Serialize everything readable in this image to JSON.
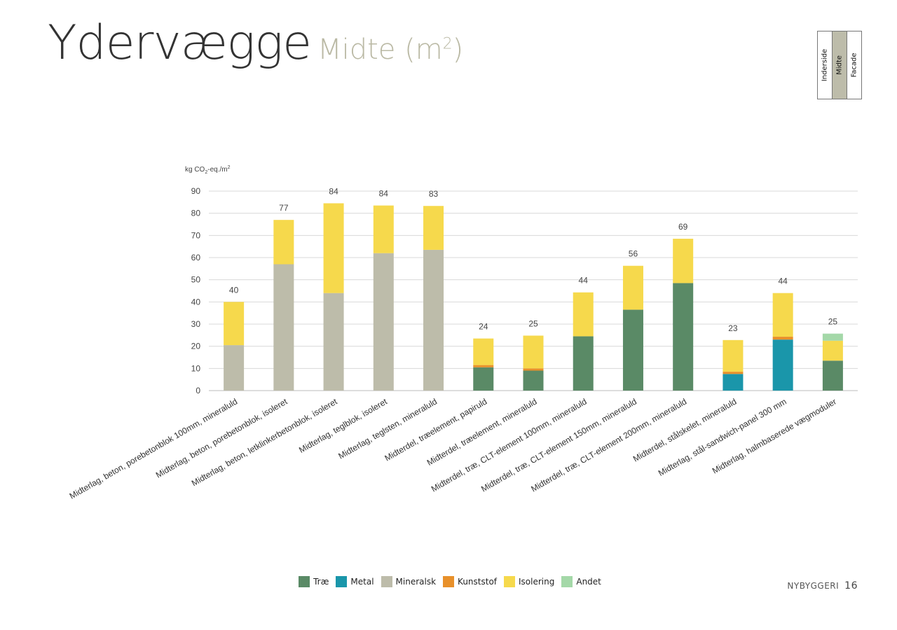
{
  "page": {
    "title": "Ydervægge",
    "subtitle": "Midte (m",
    "subtitle_sup": "2",
    "subtitle_end": ")",
    "layers": [
      "Inderside",
      "Midte",
      "Facade"
    ],
    "footer_section": "NYBYGGERI",
    "footer_page": "16"
  },
  "colors": {
    "Træ": "#5a8a66",
    "Metal": "#1a96aa",
    "Mineralsk": "#bdbcaa",
    "Kunststof": "#e8902a",
    "Isolering": "#f6d94c",
    "Andet": "#a4d8a8"
  },
  "chart_data": {
    "type": "bar",
    "stacked": true,
    "ylabel_main": "kg CO",
    "ylabel_sub": "2",
    "ylabel_end": "-eq./m",
    "ylabel_sup": "2",
    "ylim": [
      0,
      90
    ],
    "yticks": [
      "0",
      "10",
      "20",
      "30",
      "40",
      "50",
      "60",
      "70",
      "80",
      "90"
    ],
    "grid": true,
    "legend_position": "bottom",
    "categories": [
      "Midterlag, beton, porebetonblok 100mm, mineraluld",
      "Midterlag, beton, porebetonblok, isoleret",
      "Midterlag, beton, letklinkerbetonblok, isoleret",
      "Midterlag, teglblok, isoleret",
      "Midterlag, teglsten, mineraluld",
      "Midterdel, træelement, papiruld",
      "Midterdel, træelement, mineraluld",
      "Midterdel, træ, CLT-element 100mm, mineraluld",
      "Midterdel, træ, CLT-element 150mm, mineraluld",
      "Midterdel, træ, CLT-element 200mm, mineraluld",
      "Midterdel, stålskelet, mineraluld",
      "Midterlag, stål-sandwich-panel 300 mm",
      "Midterlag, halmbaserede vægmoduler"
    ],
    "series": [
      {
        "name": "Træ",
        "values": [
          0,
          0,
          0,
          0,
          0,
          10.5,
          9,
          24.5,
          36.5,
          48.5,
          0,
          0,
          13.5
        ]
      },
      {
        "name": "Metal",
        "values": [
          0,
          0,
          0,
          0,
          0,
          0,
          0,
          0,
          0,
          0,
          7.5,
          23,
          0
        ]
      },
      {
        "name": "Mineralsk",
        "values": [
          20.5,
          57,
          44,
          62,
          63.5,
          0,
          0,
          0,
          0,
          0,
          0,
          0,
          0
        ]
      },
      {
        "name": "Kunststof",
        "values": [
          0,
          0,
          0,
          0,
          0,
          1,
          1,
          0,
          0,
          0,
          1,
          1.3,
          0
        ]
      },
      {
        "name": "Isolering",
        "values": [
          19.5,
          20,
          40.5,
          21.5,
          19.8,
          12,
          14.8,
          19.8,
          19.8,
          20,
          14.3,
          19.7,
          9
        ]
      },
      {
        "name": "Andet",
        "values": [
          0,
          0,
          0,
          0,
          0,
          0,
          0,
          0,
          0,
          0,
          0,
          0,
          3.2
        ]
      }
    ],
    "totals": [
      "40",
      "77",
      "84",
      "84",
      "83",
      "24",
      "25",
      "44",
      "56",
      "69",
      "23",
      "44",
      "25"
    ]
  }
}
